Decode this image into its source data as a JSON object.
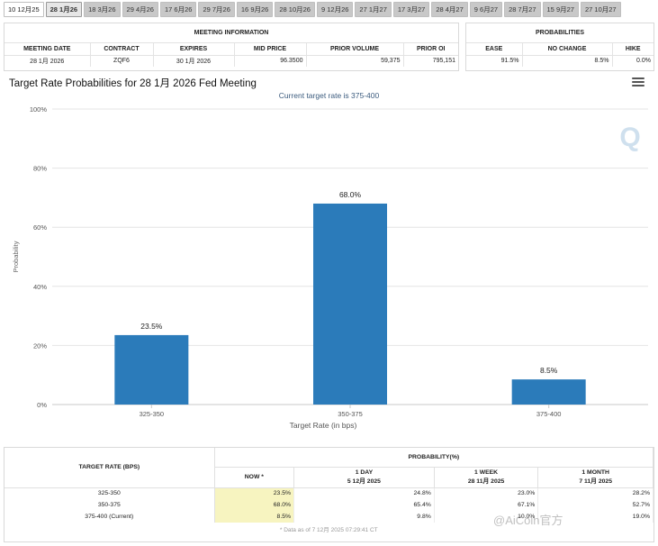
{
  "tabs": [
    "10 12月25",
    "28 1月26",
    "18 3月26",
    "29 4月26",
    "17 6月26",
    "29 7月26",
    "16 9月26",
    "28 10月26",
    "9 12月26",
    "27 1月27",
    "17 3月27",
    "28 4月27",
    "9 6月27",
    "28 7月27",
    "15 9月27",
    "27 10月27"
  ],
  "meeting_info": {
    "header": "MEETING INFORMATION",
    "columns": [
      "MEETING DATE",
      "CONTRACT",
      "EXPIRES",
      "MID PRICE",
      "PRIOR VOLUME",
      "PRIOR OI"
    ],
    "values": [
      "28 1月 2026",
      "ZQF6",
      "30 1月 2026",
      "96.3500",
      "59,375",
      "795,151"
    ]
  },
  "probabilities": {
    "header": "PROBABILITIES",
    "columns": [
      "EASE",
      "NO CHANGE",
      "HIKE"
    ],
    "values": [
      "91.5%",
      "8.5%",
      "0.0%"
    ]
  },
  "chart": {
    "title": "Target Rate Probabilities for 28 1月 2026 Fed Meeting",
    "subtitle": "Current target rate is 375-400",
    "watermark_letter": "Q"
  },
  "chart_data": {
    "type": "bar",
    "title": "Target Rate Probabilities for 28 1月 2026 Fed Meeting",
    "subtitle": "Current target rate is 375-400",
    "categories": [
      "325-350",
      "350-375",
      "375-400"
    ],
    "values": [
      23.5,
      68.0,
      8.5
    ],
    "labels": [
      "23.5%",
      "68.0%",
      "8.5%"
    ],
    "xlabel": "Target Rate (in bps)",
    "ylabel": "Probability",
    "ylim": [
      0,
      100
    ],
    "yticks": [
      0,
      20,
      40,
      60,
      80,
      100
    ],
    "ytick_labels": [
      "0%",
      "20%",
      "40%",
      "60%",
      "80%",
      "100%"
    ],
    "bar_color": "#2b7bba"
  },
  "prob_table": {
    "rate_header": "TARGET RATE (BPS)",
    "prob_header": "PROBABILITY(%)",
    "cols": [
      {
        "label": "NOW *",
        "date": ""
      },
      {
        "label": "1 DAY",
        "date": "5 12月 2025"
      },
      {
        "label": "1 WEEK",
        "date": "28 11月 2025"
      },
      {
        "label": "1 MONTH",
        "date": "7 11月 2025"
      }
    ],
    "rows": [
      {
        "rate": "325-350",
        "vals": [
          "23.5%",
          "24.8%",
          "23.0%",
          "28.2%"
        ]
      },
      {
        "rate": "350-375",
        "vals": [
          "68.0%",
          "65.4%",
          "67.1%",
          "52.7%"
        ]
      },
      {
        "rate": "375-400 (Current)",
        "vals": [
          "8.5%",
          "9.8%",
          "10.0%",
          "19.0%"
        ]
      }
    ],
    "note": "* Data as of 7 12月 2025 07:29:41 CT"
  },
  "watermark": "@AiCoin官方"
}
